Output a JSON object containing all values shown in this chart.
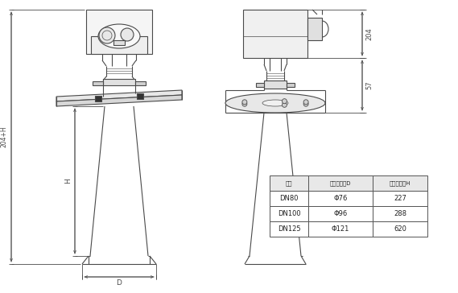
{
  "bg_color": "#ffffff",
  "line_color": "#4a4a4a",
  "table_col1": "法兰",
  "table_col2": "测量口直径D",
  "table_col3": "测量口高度H",
  "table_rows": [
    [
      "DN80",
      "Φ76",
      "227"
    ],
    [
      "DN100",
      "Φ96",
      "288"
    ],
    [
      "DN125",
      "Φ121",
      "620"
    ]
  ],
  "dim_204": "204",
  "dim_57": "57",
  "dim_H": "H",
  "dim_204H": "204+H",
  "dim_D": "D"
}
